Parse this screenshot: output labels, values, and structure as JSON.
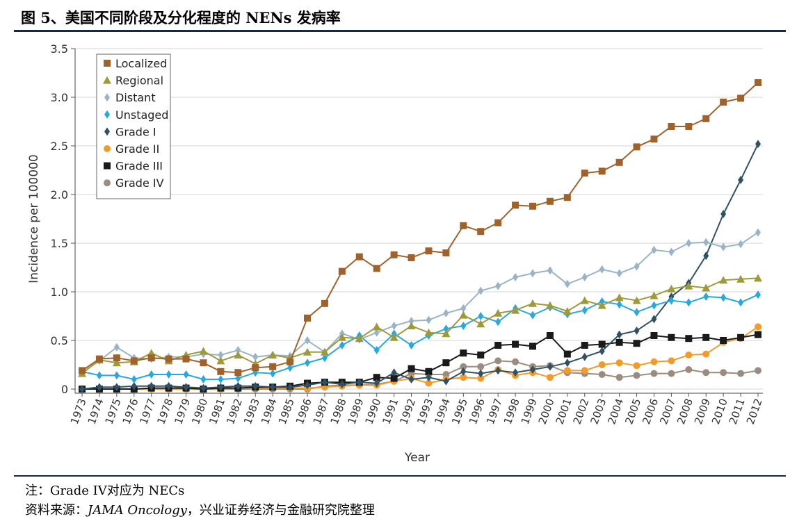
{
  "figure": {
    "title": "图 5、美国不同阶段及分化程度的 NENs 发病率",
    "note": "注：Grade IV对应为 NECs",
    "source_prefix": "资料来源：",
    "source_italic": "JAMA Oncology",
    "source_suffix": "，兴业证券经济与金融研究院整理"
  },
  "chart_data": {
    "type": "line",
    "title": "",
    "xlabel": "Year",
    "ylabel": "Incidence per 100000",
    "ylim": [
      0,
      3.5
    ],
    "yticks": [
      "0",
      "0.5",
      "1.0",
      "1.5",
      "2.0",
      "2.5",
      "3.0",
      "3.5"
    ],
    "grid": "horizontal",
    "legend_position": "top-left",
    "x": [
      "1973",
      "1974",
      "1975",
      "1976",
      "1977",
      "1978",
      "1979",
      "1980",
      "1981",
      "1982",
      "1983",
      "1984",
      "1985",
      "1986",
      "1987",
      "1988",
      "1989",
      "1990",
      "1991",
      "1992",
      "1993",
      "1994",
      "1995",
      "1996",
      "1997",
      "1998",
      "1999",
      "2000",
      "2001",
      "2002",
      "2003",
      "2004",
      "2005",
      "2006",
      "2007",
      "2008",
      "2009",
      "2010",
      "2011",
      "2012"
    ],
    "series": [
      {
        "name": "Localized",
        "color": "#a0622a",
        "marker": "square",
        "values": [
          0.19,
          0.31,
          0.32,
          0.29,
          0.32,
          0.31,
          0.31,
          0.27,
          0.18,
          0.17,
          0.22,
          0.23,
          0.28,
          0.73,
          0.88,
          1.21,
          1.36,
          1.24,
          1.38,
          1.35,
          1.42,
          1.4,
          1.68,
          1.62,
          1.71,
          1.89,
          1.88,
          1.93,
          1.97,
          2.22,
          2.24,
          2.33,
          2.49,
          2.57,
          2.7,
          2.7,
          2.78,
          2.95,
          2.99,
          3.15
        ]
      },
      {
        "name": "Regional",
        "color": "#9e9a3a",
        "marker": "triangle",
        "values": [
          0.16,
          0.3,
          0.27,
          0.28,
          0.37,
          0.29,
          0.35,
          0.39,
          0.29,
          0.35,
          0.26,
          0.35,
          0.32,
          0.38,
          0.38,
          0.53,
          0.52,
          0.64,
          0.53,
          0.65,
          0.58,
          0.57,
          0.76,
          0.67,
          0.78,
          0.81,
          0.88,
          0.86,
          0.8,
          0.91,
          0.86,
          0.94,
          0.91,
          0.96,
          1.03,
          1.06,
          1.04,
          1.12,
          1.13,
          1.14
        ]
      },
      {
        "name": "Distant",
        "color": "#98b4c6",
        "marker": "diamond",
        "values": [
          0.17,
          0.29,
          0.43,
          0.32,
          0.31,
          0.33,
          0.33,
          0.36,
          0.35,
          0.4,
          0.33,
          0.35,
          0.34,
          0.5,
          0.38,
          0.57,
          0.51,
          0.58,
          0.65,
          0.7,
          0.71,
          0.78,
          0.83,
          1.01,
          1.06,
          1.15,
          1.19,
          1.22,
          1.08,
          1.15,
          1.23,
          1.19,
          1.26,
          1.43,
          1.41,
          1.5,
          1.51,
          1.46,
          1.49,
          1.61
        ]
      },
      {
        "name": "Unstaged",
        "color": "#28a8df",
        "marker": "diamond",
        "values": [
          0.18,
          0.14,
          0.14,
          0.1,
          0.15,
          0.15,
          0.15,
          0.1,
          0.1,
          0.11,
          0.17,
          0.16,
          0.22,
          0.27,
          0.32,
          0.45,
          0.55,
          0.4,
          0.57,
          0.45,
          0.55,
          0.62,
          0.65,
          0.75,
          0.69,
          0.83,
          0.76,
          0.84,
          0.77,
          0.81,
          0.9,
          0.87,
          0.79,
          0.86,
          0.91,
          0.89,
          0.95,
          0.94,
          0.89,
          0.97
        ]
      },
      {
        "name": "Grade I",
        "color": "#2f5166",
        "marker": "diamond",
        "values": [
          0.0,
          0.02,
          0.02,
          0.03,
          0.03,
          0.03,
          0.02,
          0.01,
          0.02,
          0.03,
          0.03,
          0.02,
          0.02,
          0.04,
          0.07,
          0.05,
          0.07,
          0.06,
          0.17,
          0.1,
          0.12,
          0.08,
          0.18,
          0.16,
          0.19,
          0.17,
          0.2,
          0.23,
          0.27,
          0.33,
          0.39,
          0.56,
          0.6,
          0.72,
          0.95,
          1.09,
          1.37,
          1.8,
          2.15,
          2.52
        ]
      },
      {
        "name": "Grade II",
        "color": "#f39b2a",
        "marker": "circle",
        "values": [
          0.0,
          0.0,
          0.0,
          0.0,
          0.0,
          0.0,
          0.0,
          0.0,
          0.0,
          0.01,
          0.01,
          0.01,
          0.01,
          0.01,
          0.02,
          0.03,
          0.04,
          0.04,
          0.08,
          0.11,
          0.06,
          0.1,
          0.12,
          0.11,
          0.2,
          0.14,
          0.17,
          0.12,
          0.19,
          0.19,
          0.25,
          0.27,
          0.24,
          0.28,
          0.29,
          0.35,
          0.36,
          0.48,
          0.52,
          0.64
        ]
      },
      {
        "name": "Grade III",
        "color": "#1a1a1a",
        "marker": "square",
        "values": [
          0.0,
          0.0,
          0.0,
          0.0,
          0.01,
          0.01,
          0.01,
          0.0,
          0.01,
          0.01,
          0.02,
          0.02,
          0.03,
          0.06,
          0.07,
          0.07,
          0.07,
          0.12,
          0.11,
          0.21,
          0.18,
          0.27,
          0.37,
          0.35,
          0.45,
          0.46,
          0.44,
          0.55,
          0.36,
          0.45,
          0.46,
          0.48,
          0.47,
          0.55,
          0.53,
          0.52,
          0.53,
          0.5,
          0.53,
          0.56
        ]
      },
      {
        "name": "Grade IV",
        "color": "#9a8d80",
        "marker": "circle",
        "values": [
          0.0,
          0.0,
          0.0,
          0.0,
          0.0,
          0.0,
          0.0,
          0.0,
          0.0,
          0.0,
          0.0,
          0.0,
          0.0,
          0.0,
          0.03,
          0.04,
          0.04,
          0.05,
          0.08,
          0.16,
          0.15,
          0.15,
          0.23,
          0.23,
          0.29,
          0.28,
          0.23,
          0.24,
          0.17,
          0.16,
          0.15,
          0.12,
          0.14,
          0.16,
          0.16,
          0.2,
          0.17,
          0.17,
          0.16,
          0.19
        ]
      }
    ]
  }
}
